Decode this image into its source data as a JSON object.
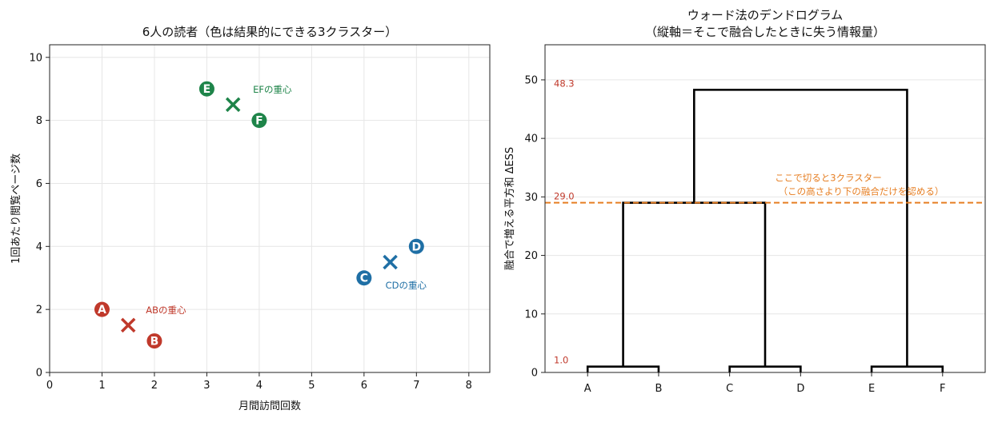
{
  "chart_data": [
    {
      "type": "scatter",
      "title": "6人の読者（色は結果的にできる3クラスター）",
      "xlabel": "月間訪問回数",
      "ylabel": "1回あたり閲覧ページ数",
      "xlim": [
        0,
        8.4
      ],
      "ylim": [
        0,
        10.4
      ],
      "xticks": [
        "0",
        "1",
        "2",
        "3",
        "4",
        "5",
        "6",
        "7",
        "8"
      ],
      "yticks": [
        "0",
        "2",
        "4",
        "6",
        "8",
        "10"
      ],
      "grid": true,
      "colors": {
        "red": "#c0392b",
        "blue": "#1f6fa5",
        "green": "#1e8449"
      },
      "points": [
        {
          "label": "A",
          "x": 1,
          "y": 2,
          "color": "red"
        },
        {
          "label": "B",
          "x": 2,
          "y": 1,
          "color": "red"
        },
        {
          "label": "C",
          "x": 6,
          "y": 3,
          "color": "blue"
        },
        {
          "label": "D",
          "x": 7,
          "y": 4,
          "color": "blue"
        },
        {
          "label": "E",
          "x": 3,
          "y": 9,
          "color": "green"
        },
        {
          "label": "F",
          "x": 4,
          "y": 8,
          "color": "green"
        }
      ],
      "centroids": [
        {
          "label": "ABの重心",
          "x": 1.5,
          "y": 1.5,
          "color": "red"
        },
        {
          "label": "CDの重心",
          "x": 6.5,
          "y": 3.5,
          "color": "blue"
        },
        {
          "label": "EFの重心",
          "x": 3.5,
          "y": 8.5,
          "color": "green"
        }
      ]
    },
    {
      "type": "dendrogram",
      "title": "ウォード法のデンドログラム",
      "subtitle": "（縦軸＝そこで融合したときに失う情報量）",
      "xlabel": "",
      "ylabel": "融合で増える平方和 ΔESS",
      "ylim": [
        0,
        56
      ],
      "yticks": [
        "0",
        "10",
        "20",
        "30",
        "40",
        "50"
      ],
      "grid": true,
      "leaves": [
        "A",
        "B",
        "C",
        "D",
        "E",
        "F"
      ],
      "merges": [
        {
          "left": "A",
          "right": "B",
          "height": 1.0
        },
        {
          "left": "C",
          "right": "D",
          "height": 1.0
        },
        {
          "left": "E",
          "right": "F",
          "height": 1.0
        },
        {
          "left": "AB",
          "right": "CD",
          "height": 29.0
        },
        {
          "left": "ABCD",
          "right": "EF",
          "height": 48.3
        }
      ],
      "height_labels": [
        "48.3",
        "29.0",
        "1.0"
      ],
      "cut": {
        "height": 29.0,
        "color": "#e67e22",
        "label_line1": "ここで切ると3クラスター",
        "label_line2": "（この高さより下の融合だけを認める）"
      },
      "label_color": "#c0392b"
    }
  ]
}
